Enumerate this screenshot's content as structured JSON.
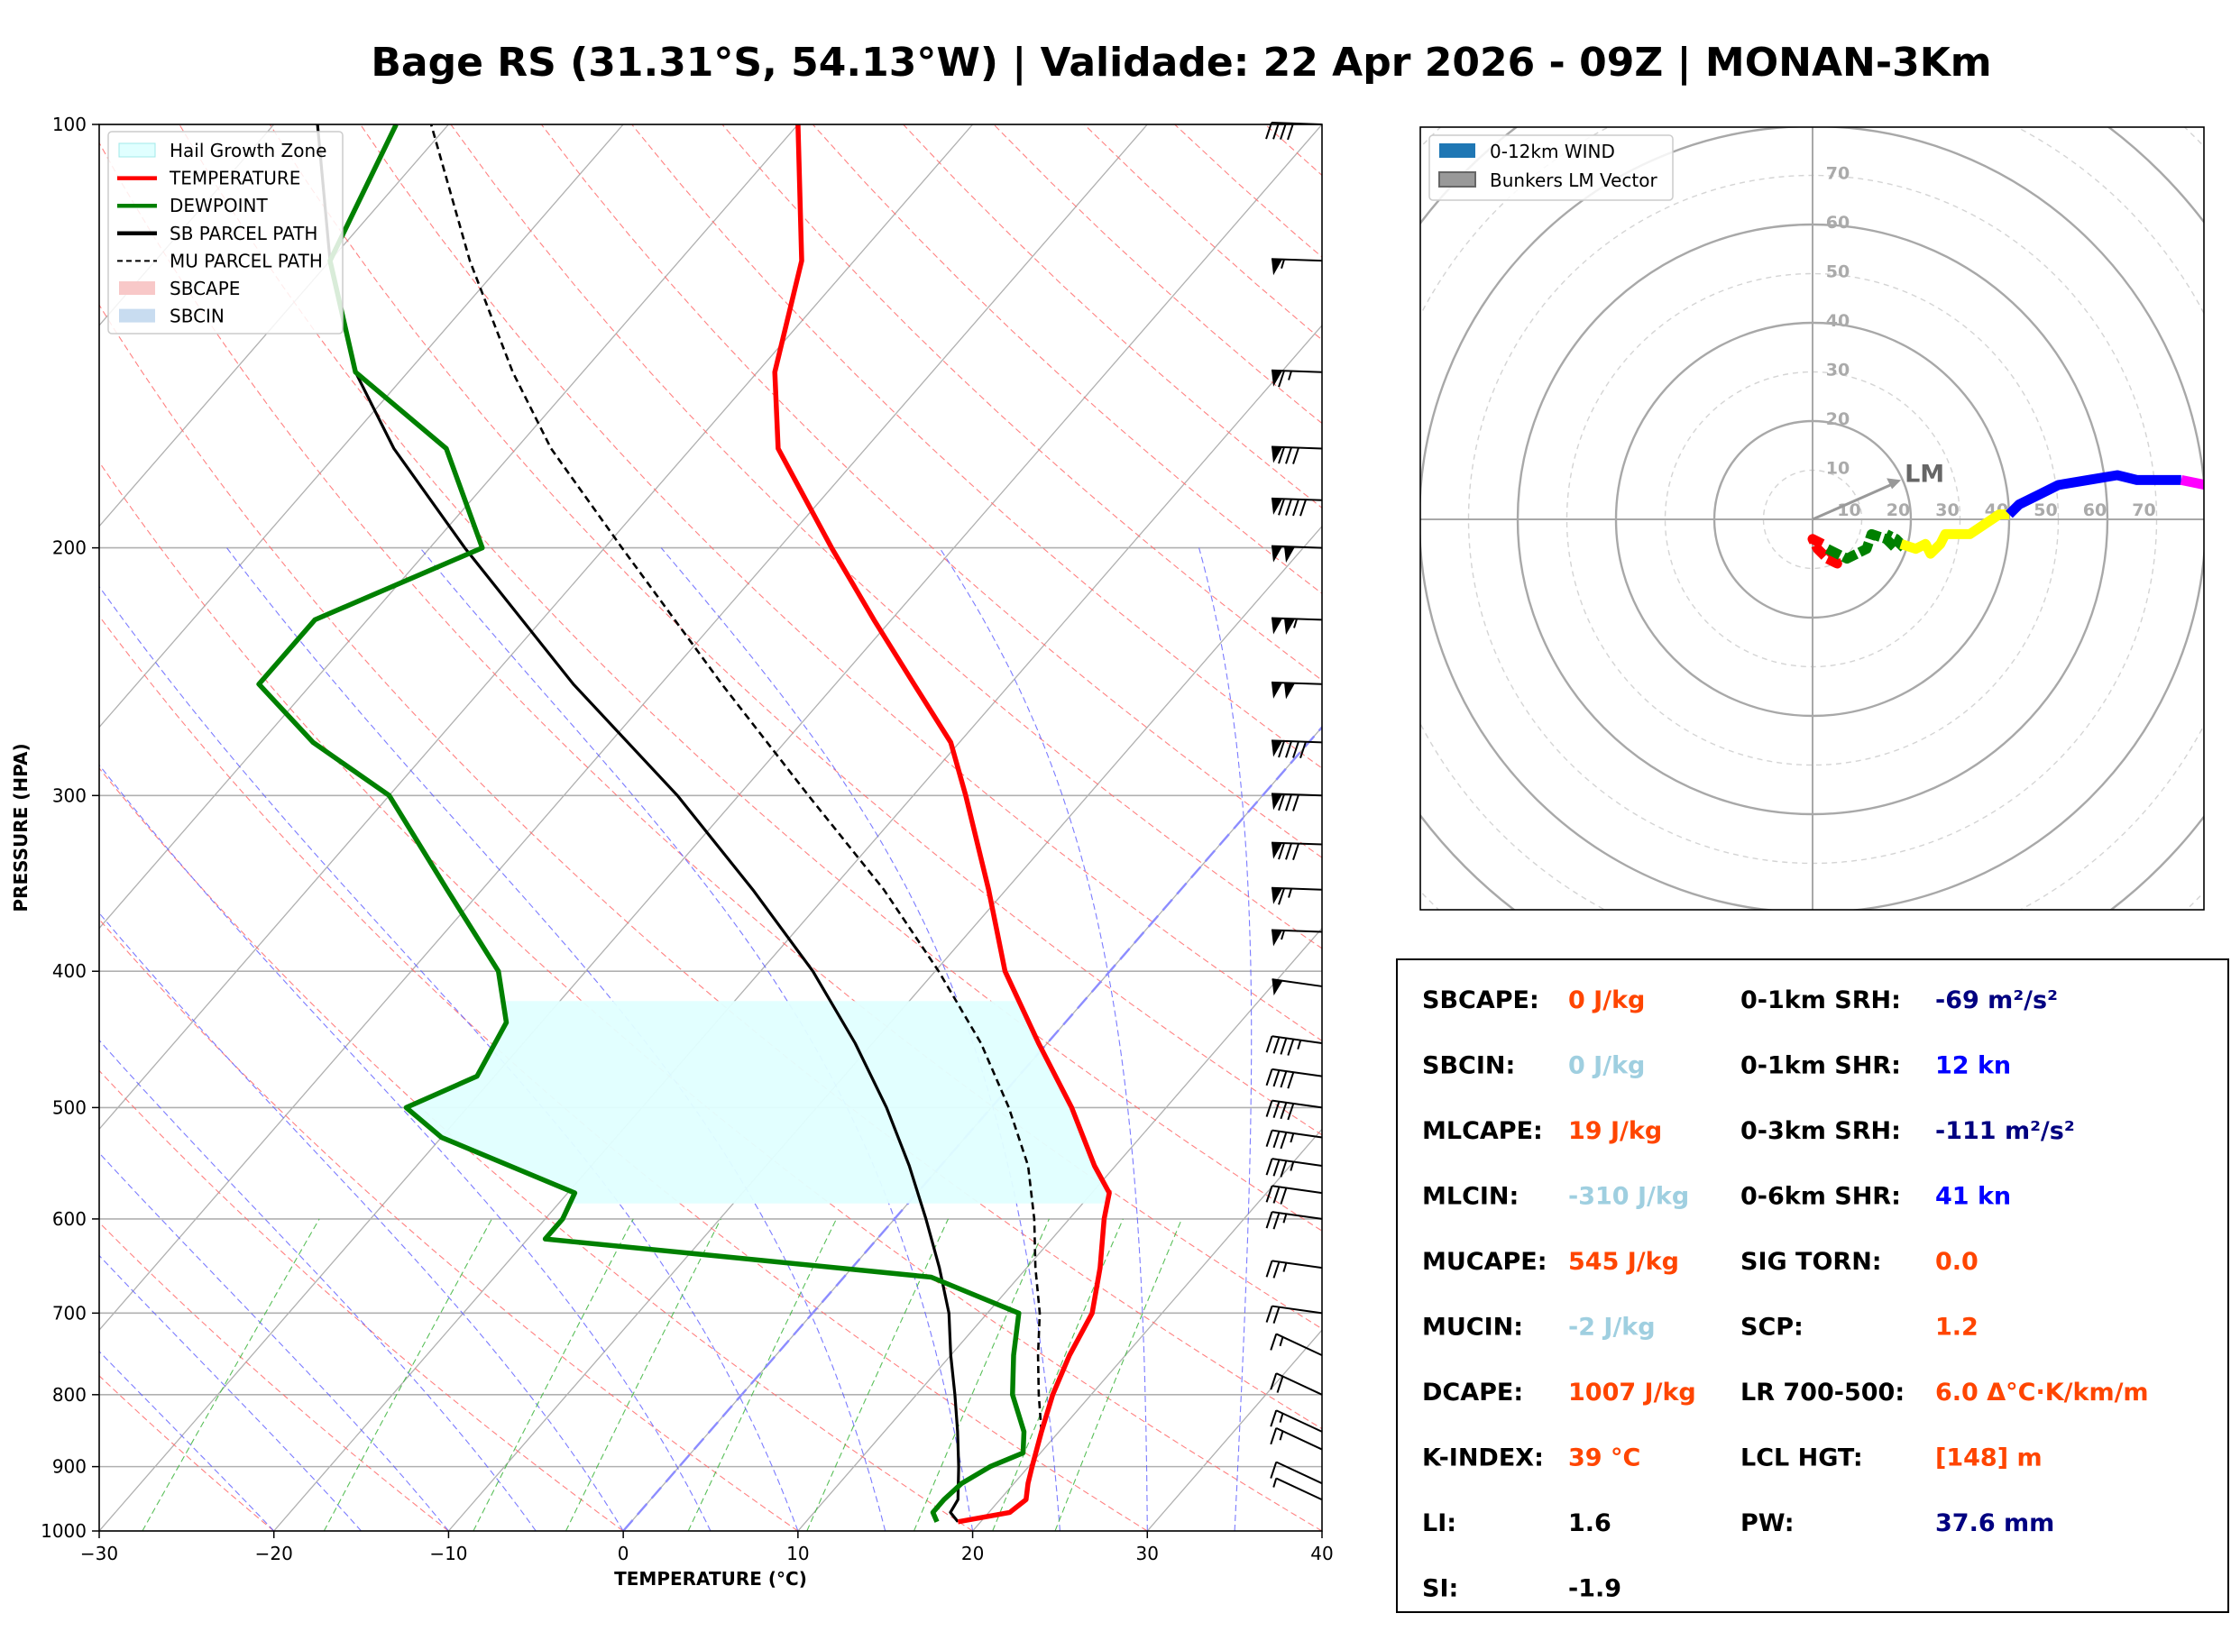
{
  "title": "Bage RS (31.31°S, 54.13°W) | Validade: 22 Apr 2026 - 09Z | MONAN-3Km",
  "skewt": {
    "xlabel": "TEMPERATURE (°C)",
    "ylabel": "PRESSURE (HPA)",
    "x_ticks": [
      "−30",
      "−20",
      "−10",
      "0",
      "10",
      "20",
      "30",
      "40"
    ],
    "y_ticks": [
      "100",
      "200",
      "300",
      "400",
      "500",
      "600",
      "700",
      "800",
      "900",
      "1000"
    ],
    "legend": [
      {
        "label": "Hail Growth Zone",
        "color": "#e0ffff",
        "kind": "patch"
      },
      {
        "label": "TEMPERATURE",
        "color": "#ff0000",
        "kind": "line"
      },
      {
        "label": "DEWPOINT",
        "color": "#008000",
        "kind": "line"
      },
      {
        "label": "SB PARCEL PATH",
        "color": "#000000",
        "kind": "line"
      },
      {
        "label": "MU PARCEL PATH",
        "color": "#000000",
        "kind": "dashed"
      },
      {
        "label": "SBCAPE",
        "color": "#f8c8c8",
        "kind": "patch"
      },
      {
        "label": "SBCIN",
        "color": "#c8dcf0",
        "kind": "patch"
      }
    ]
  },
  "hodograph": {
    "legend": [
      {
        "label": "0-12km WIND",
        "color": "#1f77b4"
      },
      {
        "label": "Bunkers LM Vector",
        "color": "#999999"
      }
    ],
    "ring_labels_x": [
      "10",
      "20",
      "30",
      "40",
      "50",
      "60",
      "70"
    ],
    "ring_labels_y": [
      "10",
      "20",
      "30",
      "40",
      "50",
      "60",
      "70"
    ],
    "lm_label": "LM"
  },
  "indices": {
    "left": [
      {
        "label": "SBCAPE:",
        "value": "0 J/kg",
        "color": "#ff4500"
      },
      {
        "label": "SBCIN:",
        "value": "0 J/kg",
        "color": "#9fcfe0"
      },
      {
        "label": "MLCAPE:",
        "value": "19 J/kg",
        "color": "#ff4500"
      },
      {
        "label": "MLCIN:",
        "value": "-310 J/kg",
        "color": "#9fcfe0"
      },
      {
        "label": "MUCAPE:",
        "value": "545 J/kg",
        "color": "#ff4500"
      },
      {
        "label": "MUCIN:",
        "value": "-2 J/kg",
        "color": "#9fcfe0"
      },
      {
        "label": "DCAPE:",
        "value": "1007 J/kg",
        "color": "#ff4500"
      },
      {
        "label": "K-INDEX:",
        "value": "39 °C",
        "color": "#ff4500"
      },
      {
        "label": "LI:",
        "value": "1.6",
        "color": "#000000"
      },
      {
        "label": "SI:",
        "value": "-1.9",
        "color": "#000000"
      }
    ],
    "right": [
      {
        "label": "0-1km SRH:",
        "value": "-69 m²/s²",
        "color": "#000080"
      },
      {
        "label": "0-1km SHR:",
        "value": "12 kn",
        "color": "#0000ff"
      },
      {
        "label": "0-3km SRH:",
        "value": "-111 m²/s²",
        "color": "#000080"
      },
      {
        "label": "0-6km SHR:",
        "value": "41 kn",
        "color": "#0000ff"
      },
      {
        "label": "SIG TORN:",
        "value": "0.0",
        "color": "#ff4500"
      },
      {
        "label": "SCP:",
        "value": "1.2",
        "color": "#ff4500"
      },
      {
        "label": "LR 700-500:",
        "value": "6.0 Δ°C·K/km/m",
        "color": "#ff4500"
      },
      {
        "label": "LCL HGT:",
        "value": "[148] m",
        "color": "#ff4500"
      },
      {
        "label": "PW:",
        "value": "37.6 mm",
        "color": "#000080"
      }
    ]
  },
  "chart_data": [
    {
      "type": "line",
      "chart": "skew-t",
      "xlim": [
        -30,
        40
      ],
      "ylim": [
        1000,
        100
      ],
      "y_scale": "log",
      "grid": true,
      "legend_position": "top-left",
      "temperature": [
        {
          "p": 985,
          "t": 18.7
        },
        {
          "p": 970,
          "t": 21.2
        },
        {
          "p": 950,
          "t": 21.5
        },
        {
          "p": 925,
          "t": 20.8
        },
        {
          "p": 900,
          "t": 20.2
        },
        {
          "p": 850,
          "t": 19.0
        },
        {
          "p": 800,
          "t": 17.8
        },
        {
          "p": 750,
          "t": 16.8
        },
        {
          "p": 700,
          "t": 16.0
        },
        {
          "p": 650,
          "t": 14.2
        },
        {
          "p": 600,
          "t": 12.0
        },
        {
          "p": 575,
          "t": 11.0
        },
        {
          "p": 550,
          "t": 8.8
        },
        {
          "p": 500,
          "t": 4.6
        },
        {
          "p": 450,
          "t": -0.5
        },
        {
          "p": 400,
          "t": -6.0
        },
        {
          "p": 350,
          "t": -11.0
        },
        {
          "p": 300,
          "t": -17.0
        },
        {
          "p": 275,
          "t": -20.5
        },
        {
          "p": 250,
          "t": -25.5
        },
        {
          "p": 225,
          "t": -31.0
        },
        {
          "p": 200,
          "t": -37.0
        },
        {
          "p": 170,
          "t": -45.0
        },
        {
          "p": 150,
          "t": -49.0
        },
        {
          "p": 125,
          "t": -53.0
        },
        {
          "p": 100,
          "t": -60.0
        }
      ],
      "dewpoint": [
        {
          "p": 985,
          "t": 17.5
        },
        {
          "p": 970,
          "t": 16.8
        },
        {
          "p": 950,
          "t": 16.8
        },
        {
          "p": 925,
          "t": 17.0
        },
        {
          "p": 900,
          "t": 17.8
        },
        {
          "p": 880,
          "t": 19.0
        },
        {
          "p": 850,
          "t": 18.0
        },
        {
          "p": 800,
          "t": 15.5
        },
        {
          "p": 750,
          "t": 13.6
        },
        {
          "p": 700,
          "t": 11.8
        },
        {
          "p": 660,
          "t": 5.0
        },
        {
          "p": 620,
          "t": -19.0
        },
        {
          "p": 600,
          "t": -19.0
        },
        {
          "p": 575,
          "t": -19.6
        },
        {
          "p": 525,
          "t": -30.0
        },
        {
          "p": 500,
          "t": -33.5
        },
        {
          "p": 475,
          "t": -31.0
        },
        {
          "p": 435,
          "t": -32.0
        },
        {
          "p": 400,
          "t": -35.0
        },
        {
          "p": 350,
          "t": -42.0
        },
        {
          "p": 300,
          "t": -50.0
        },
        {
          "p": 275,
          "t": -57.0
        },
        {
          "p": 250,
          "t": -63.0
        },
        {
          "p": 225,
          "t": -63.0
        },
        {
          "p": 200,
          "t": -57.0
        },
        {
          "p": 170,
          "t": -64.0
        },
        {
          "p": 150,
          "t": -73.0
        },
        {
          "p": 125,
          "t": -80.0
        },
        {
          "p": 100,
          "t": -83.0
        }
      ],
      "sb_parcel": [
        {
          "p": 985,
          "t": 18.7
        },
        {
          "p": 970,
          "t": 17.8
        },
        {
          "p": 950,
          "t": 17.6
        },
        {
          "p": 900,
          "t": 16.0
        },
        {
          "p": 850,
          "t": 14.2
        },
        {
          "p": 800,
          "t": 12.2
        },
        {
          "p": 750,
          "t": 10.0
        },
        {
          "p": 700,
          "t": 7.8
        },
        {
          "p": 650,
          "t": 5.0
        },
        {
          "p": 600,
          "t": 1.8
        },
        {
          "p": 550,
          "t": -1.8
        },
        {
          "p": 500,
          "t": -6.0
        },
        {
          "p": 450,
          "t": -11.0
        },
        {
          "p": 400,
          "t": -17.0
        },
        {
          "p": 350,
          "t": -24.5
        },
        {
          "p": 300,
          "t": -33.5
        },
        {
          "p": 250,
          "t": -45.0
        },
        {
          "p": 200,
          "t": -58.0
        },
        {
          "p": 170,
          "t": -67.0
        },
        {
          "p": 150,
          "t": -73.0
        },
        {
          "p": 125,
          "t": -80.0
        },
        {
          "p": 100,
          "t": -87.5
        }
      ],
      "mu_parcel": [
        {
          "p": 850,
          "t": 19.0
        },
        {
          "p": 800,
          "t": 17.0
        },
        {
          "p": 750,
          "t": 15.0
        },
        {
          "p": 700,
          "t": 13.0
        },
        {
          "p": 650,
          "t": 10.5
        },
        {
          "p": 600,
          "t": 8.0
        },
        {
          "p": 550,
          "t": 5.0
        },
        {
          "p": 500,
          "t": 1.0
        },
        {
          "p": 450,
          "t": -3.8
        },
        {
          "p": 400,
          "t": -9.8
        },
        {
          "p": 350,
          "t": -17.0
        },
        {
          "p": 300,
          "t": -26.0
        },
        {
          "p": 250,
          "t": -36.5
        },
        {
          "p": 200,
          "t": -49.0
        },
        {
          "p": 170,
          "t": -58.0
        },
        {
          "p": 150,
          "t": -64.0
        },
        {
          "p": 125,
          "t": -72.0
        },
        {
          "p": 100,
          "t": -81.0
        }
      ],
      "hail_growth_zone": {
        "p_bottom": 585,
        "p_top": 420
      },
      "wind_barbs": [
        {
          "p": 100,
          "flags": 0,
          "full": 4,
          "half": 0
        },
        {
          "p": 125,
          "flags": 1,
          "full": 0,
          "half": 1
        },
        {
          "p": 150,
          "flags": 1,
          "full": 1,
          "half": 1
        },
        {
          "p": 170,
          "flags": 1,
          "full": 3,
          "half": 0
        },
        {
          "p": 185,
          "flags": 1,
          "full": 4,
          "half": 0
        },
        {
          "p": 200,
          "flags": 2,
          "full": 0,
          "half": 0
        },
        {
          "p": 225,
          "flags": 2,
          "full": 0,
          "half": 1
        },
        {
          "p": 250,
          "flags": 2,
          "full": 0,
          "half": 0
        },
        {
          "p": 275,
          "flags": 1,
          "full": 4,
          "half": 0
        },
        {
          "p": 300,
          "flags": 1,
          "full": 3,
          "half": 0
        },
        {
          "p": 325,
          "flags": 1,
          "full": 3,
          "half": 0
        },
        {
          "p": 350,
          "flags": 1,
          "full": 1,
          "half": 1
        },
        {
          "p": 375,
          "flags": 1,
          "full": 0,
          "half": 1
        },
        {
          "p": 410,
          "flags": 1,
          "full": 0,
          "half": 0
        },
        {
          "p": 450,
          "flags": 0,
          "full": 4,
          "half": 1
        },
        {
          "p": 475,
          "flags": 0,
          "full": 4,
          "half": 0
        },
        {
          "p": 500,
          "flags": 0,
          "full": 4,
          "half": 0
        },
        {
          "p": 525,
          "flags": 0,
          "full": 3,
          "half": 1
        },
        {
          "p": 550,
          "flags": 0,
          "full": 3,
          "half": 1
        },
        {
          "p": 575,
          "flags": 0,
          "full": 3,
          "half": 0
        },
        {
          "p": 600,
          "flags": 0,
          "full": 2,
          "half": 1
        },
        {
          "p": 650,
          "flags": 0,
          "full": 2,
          "half": 1
        },
        {
          "p": 700,
          "flags": 0,
          "full": 2,
          "half": 0
        },
        {
          "p": 750,
          "flags": 0,
          "full": 1,
          "half": 1
        },
        {
          "p": 800,
          "flags": 0,
          "full": 2,
          "half": 0
        },
        {
          "p": 850,
          "flags": 0,
          "full": 1,
          "half": 1
        },
        {
          "p": 875,
          "flags": 0,
          "full": 1,
          "half": 1
        },
        {
          "p": 925,
          "flags": 0,
          "full": 1,
          "half": 0
        },
        {
          "p": 950,
          "flags": 0,
          "full": 0,
          "half": 1
        }
      ]
    },
    {
      "type": "line",
      "chart": "hodograph",
      "max_ring": 80,
      "ring_step": 10,
      "bunkers_lm": {
        "u": 18,
        "v": 8
      },
      "segments": [
        {
          "color": "#ff0000",
          "points": [
            [
              2,
              -5
            ],
            [
              0,
              -4
            ],
            [
              1,
              -6
            ],
            [
              3,
              -8
            ],
            [
              5,
              -9
            ],
            [
              4,
              -7
            ],
            [
              3,
              -6
            ]
          ]
        },
        {
          "color": "#008000",
          "points": [
            [
              3,
              -6
            ],
            [
              7,
              -8
            ],
            [
              11,
              -6
            ],
            [
              12,
              -3
            ],
            [
              15,
              -4
            ],
            [
              17,
              -6
            ],
            [
              18,
              -5
            ],
            [
              17,
              -4
            ],
            [
              15,
              -3
            ]
          ]
        },
        {
          "color": "#ffff00",
          "points": [
            [
              18,
              -5
            ],
            [
              21,
              -6
            ],
            [
              23,
              -5
            ],
            [
              24,
              -7
            ],
            [
              26,
              -5
            ],
            [
              27,
              -3
            ],
            [
              32,
              -3
            ],
            [
              38,
              1
            ],
            [
              40,
              1
            ]
          ]
        },
        {
          "color": "#0000ff",
          "points": [
            [
              40,
              1
            ],
            [
              42,
              3
            ],
            [
              46,
              5
            ],
            [
              50,
              7
            ],
            [
              56,
              8
            ],
            [
              62,
              9
            ],
            [
              66,
              8
            ],
            [
              75,
              8
            ]
          ]
        },
        {
          "color": "#ff00ff",
          "points": [
            [
              75,
              8
            ],
            [
              80,
              7
            ]
          ]
        }
      ]
    }
  ]
}
